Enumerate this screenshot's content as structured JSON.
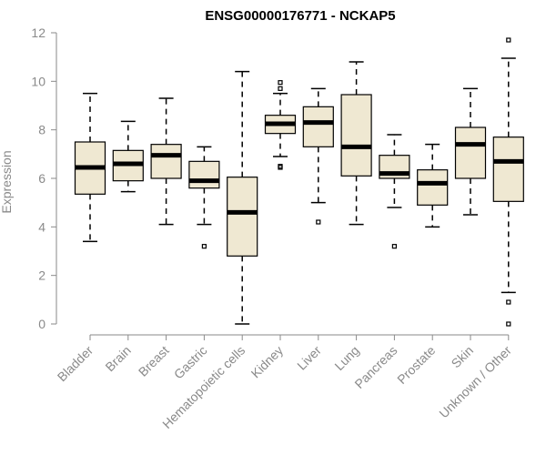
{
  "chart_data": {
    "type": "boxplot",
    "title": "ENSG00000176771 - NCKAP5",
    "xlabel": "",
    "ylabel": "Expression",
    "ylim": [
      0,
      12
    ],
    "yticks": [
      "0",
      "2",
      "4",
      "6",
      "8",
      "10",
      "12"
    ],
    "box_color": "#efe8d2",
    "categories": [
      "Bladder",
      "Brain",
      "Breast",
      "Gastric",
      "Hematopoietic cells",
      "Kidney",
      "Liver",
      "Lung",
      "Pancreas",
      "Prostate",
      "Skin",
      "Unknown / Other"
    ],
    "series": [
      {
        "name": "Bladder",
        "min": 3.4,
        "q1": 5.35,
        "median": 6.45,
        "q3": 7.5,
        "max": 9.5,
        "outliers": []
      },
      {
        "name": "Brain",
        "min": 5.45,
        "q1": 5.9,
        "median": 6.6,
        "q3": 7.15,
        "max": 8.35,
        "outliers": []
      },
      {
        "name": "Breast",
        "min": 4.1,
        "q1": 6.0,
        "median": 6.95,
        "q3": 7.4,
        "max": 9.3,
        "outliers": []
      },
      {
        "name": "Gastric",
        "min": 4.1,
        "q1": 5.6,
        "median": 5.9,
        "q3": 6.7,
        "max": 7.3,
        "outliers": [
          3.2
        ]
      },
      {
        "name": "Hematopoietic cells",
        "min": 0.0,
        "q1": 2.8,
        "median": 4.6,
        "q3": 6.05,
        "max": 10.4,
        "outliers": []
      },
      {
        "name": "Kidney",
        "min": 6.9,
        "q1": 7.85,
        "median": 8.25,
        "q3": 8.6,
        "max": 9.5,
        "outliers": [
          9.95,
          9.7,
          6.5,
          6.45
        ]
      },
      {
        "name": "Liver",
        "min": 5.0,
        "q1": 7.3,
        "median": 8.3,
        "q3": 8.95,
        "max": 9.7,
        "outliers": [
          4.2
        ]
      },
      {
        "name": "Lung",
        "min": 4.1,
        "q1": 6.1,
        "median": 7.3,
        "q3": 9.45,
        "max": 10.8,
        "outliers": []
      },
      {
        "name": "Pancreas",
        "min": 4.8,
        "q1": 6.0,
        "median": 6.2,
        "q3": 6.95,
        "max": 7.8,
        "outliers": [
          3.2
        ]
      },
      {
        "name": "Prostate",
        "min": 4.0,
        "q1": 4.9,
        "median": 5.8,
        "q3": 6.35,
        "max": 7.4,
        "outliers": []
      },
      {
        "name": "Skin",
        "min": 4.5,
        "q1": 6.0,
        "median": 7.4,
        "q3": 8.1,
        "max": 9.7,
        "outliers": []
      },
      {
        "name": "Unknown / Other",
        "min": 1.3,
        "q1": 5.05,
        "median": 6.7,
        "q3": 7.7,
        "max": 10.95,
        "outliers": [
          11.7,
          0.9,
          0.0
        ]
      }
    ]
  }
}
